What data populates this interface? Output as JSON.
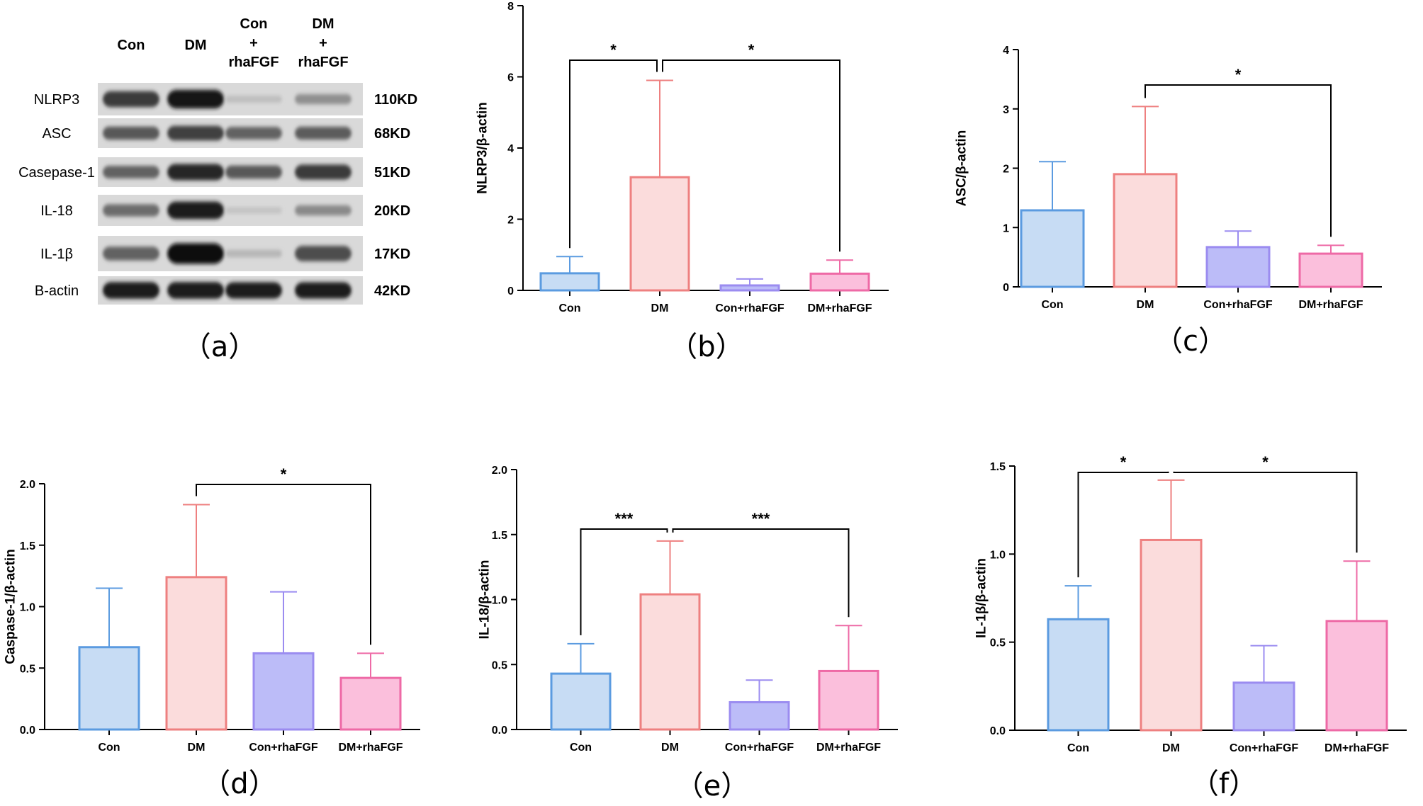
{
  "western_blot": {
    "panel_label": "（a）",
    "columns": [
      {
        "lines": [
          "Con"
        ]
      },
      {
        "lines": [
          "DM"
        ]
      },
      {
        "lines": [
          "Con",
          "+",
          "rhaFGF"
        ]
      },
      {
        "lines": [
          "DM",
          "+",
          "rhaFGF"
        ]
      }
    ],
    "rows": [
      {
        "label": "NLRP3",
        "kd": "110KD",
        "intensity": [
          0.75,
          0.95,
          0.08,
          0.32
        ]
      },
      {
        "label": "ASC",
        "kd": "68KD",
        "intensity": [
          0.6,
          0.72,
          0.55,
          0.58
        ]
      },
      {
        "label": "Casepase-1",
        "kd": "51KD",
        "intensity": [
          0.55,
          0.85,
          0.6,
          0.75
        ]
      },
      {
        "label": "IL-18",
        "kd": "20KD",
        "intensity": [
          0.5,
          0.9,
          0.05,
          0.35
        ]
      },
      {
        "label": "IL-1β",
        "kd": "17KD",
        "intensity": [
          0.55,
          1.0,
          0.12,
          0.65
        ]
      },
      {
        "label": "B-actin",
        "kd": "42KD",
        "intensity": [
          0.92,
          0.92,
          0.9,
          0.9
        ]
      }
    ]
  },
  "colors": {
    "fills": [
      "#c7dcf4",
      "#fbdcdc",
      "#bcbcf8",
      "#fbbfdc"
    ],
    "strokes": [
      "#5b9be0",
      "#ee8080",
      "#9b8cf0",
      "#ee6aa6"
    ],
    "axis": "#000000"
  },
  "chart_data": [
    {
      "type": "bar",
      "panel_label": "（b）",
      "categories": [
        "Con",
        "DM",
        "Con+rhaFGF",
        "DM+rhaFGF"
      ],
      "values": [
        0.48,
        3.18,
        0.14,
        0.47
      ],
      "errors": [
        0.47,
        2.72,
        0.18,
        0.38
      ],
      "ylabel": "NLRP3/β-actin",
      "ylim": [
        0,
        8
      ],
      "yticks": [
        0,
        2,
        4,
        6,
        8
      ],
      "ytick_labels": [
        "0",
        "2",
        "4",
        "6",
        "8"
      ],
      "brackets": [
        {
          "from": 0,
          "to": 1,
          "label": "*"
        },
        {
          "from": 1,
          "to": 3,
          "label": "*"
        }
      ]
    },
    {
      "type": "bar",
      "panel_label": "（c）",
      "categories": [
        "Con",
        "DM",
        "Con+rhaFGF",
        "DM+rhaFGF"
      ],
      "values": [
        1.29,
        1.9,
        0.67,
        0.56
      ],
      "errors": [
        0.82,
        1.14,
        0.27,
        0.14
      ],
      "ylabel": "ASC/β-actin",
      "ylim": [
        0,
        4
      ],
      "yticks": [
        0,
        1,
        2,
        3,
        4
      ],
      "ytick_labels": [
        "0",
        "1",
        "2",
        "3",
        "4"
      ],
      "brackets": [
        {
          "from": 1,
          "to": 3,
          "label": "*"
        }
      ]
    },
    {
      "type": "bar",
      "panel_label": "（d）",
      "categories": [
        "Con",
        "DM",
        "Con+rhaFGF",
        "DM+rhaFGF"
      ],
      "values": [
        0.67,
        1.24,
        0.62,
        0.42
      ],
      "errors": [
        0.48,
        0.59,
        0.5,
        0.2
      ],
      "ylabel": "Caspase-1/β-actin",
      "ylim": [
        0,
        2
      ],
      "yticks": [
        0,
        0.5,
        1,
        1.5,
        2
      ],
      "ytick_labels": [
        "0.0",
        "0.5",
        "1.0",
        "1.5",
        "2.0"
      ],
      "brackets": [
        {
          "from": 1,
          "to": 3,
          "label": "*"
        }
      ]
    },
    {
      "type": "bar",
      "panel_label": "（e）",
      "categories": [
        "Con",
        "DM",
        "Con+rhaFGF",
        "DM+rhaFGF"
      ],
      "values": [
        0.43,
        1.04,
        0.21,
        0.45
      ],
      "errors": [
        0.23,
        0.41,
        0.17,
        0.35
      ],
      "ylabel": "IL-18/β-actin",
      "ylim": [
        0,
        2
      ],
      "yticks": [
        0,
        0.5,
        1,
        1.5,
        2
      ],
      "ytick_labels": [
        "0.0",
        "0.5",
        "1.0",
        "1.5",
        "2.0"
      ],
      "brackets": [
        {
          "from": 0,
          "to": 1,
          "label": "***"
        },
        {
          "from": 1,
          "to": 3,
          "label": "***"
        }
      ]
    },
    {
      "type": "bar",
      "panel_label": "（f）",
      "categories": [
        "Con",
        "DM",
        "Con+rhaFGF",
        "DM+rhaFGF"
      ],
      "values": [
        0.63,
        1.08,
        0.27,
        0.62
      ],
      "errors": [
        0.19,
        0.34,
        0.21,
        0.34
      ],
      "ylabel": "IL-1β/β-actin",
      "ylim": [
        0,
        1.5
      ],
      "yticks": [
        0,
        0.5,
        1,
        1.5
      ],
      "ytick_labels": [
        "0.0",
        "0.5",
        "1.0",
        "1.5"
      ],
      "brackets": [
        {
          "from": 0,
          "to": 1,
          "label": "*"
        },
        {
          "from": 1,
          "to": 3,
          "label": "*"
        }
      ]
    }
  ]
}
